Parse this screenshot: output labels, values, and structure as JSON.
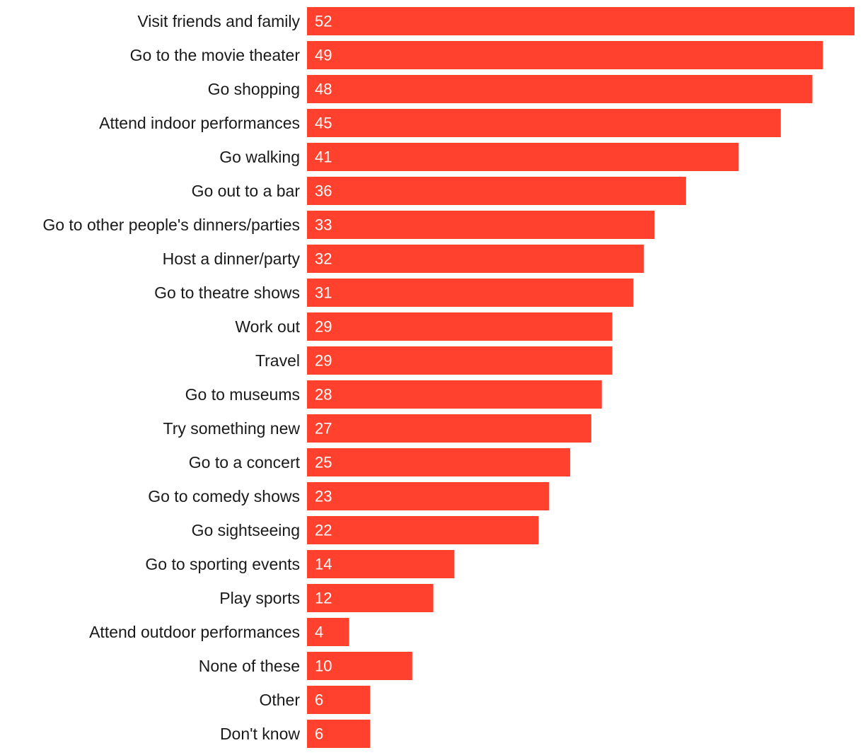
{
  "chart_data": {
    "type": "bar",
    "orientation": "horizontal",
    "title": "",
    "xlabel": "",
    "ylabel": "",
    "bar_color": "#ff412e",
    "xlim": [
      0,
      52
    ],
    "grid": false,
    "legend": "none",
    "categories": [
      "Visit friends and family",
      "Go to the movie theater",
      "Go shopping",
      "Attend indoor performances",
      "Go walking",
      "Go out to a bar",
      "Go to other people's dinners/parties",
      "Host a dinner/party",
      "Go to theatre shows",
      "Work out",
      "Travel",
      "Go to museums",
      "Try something new",
      "Go to a concert",
      "Go to comedy shows",
      "Go sightseeing",
      "Go to sporting events",
      "Play sports",
      "Attend outdoor performances",
      "None of these",
      "Other",
      "Don't know"
    ],
    "values": [
      52,
      49,
      48,
      45,
      41,
      36,
      33,
      32,
      31,
      29,
      29,
      28,
      27,
      25,
      23,
      22,
      14,
      12,
      4,
      10,
      6,
      6
    ]
  }
}
